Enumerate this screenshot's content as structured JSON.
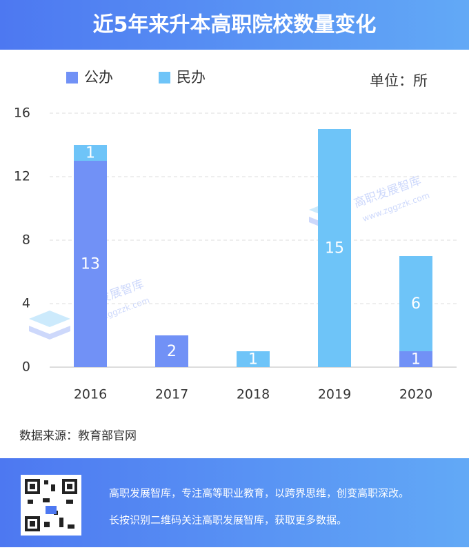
{
  "chart_data": {
    "type": "stacked-bar",
    "title": "近5年来升本高职院校数量变化",
    "unit_label": "单位：所",
    "categories": [
      "2016",
      "2017",
      "2018",
      "2019",
      "2020"
    ],
    "series": [
      {
        "name": "公办",
        "color": "#7191f6",
        "values": [
          13,
          2,
          0,
          0,
          1
        ]
      },
      {
        "name": "民办",
        "color": "#6ec4f8",
        "values": [
          1,
          0,
          1,
          15,
          6
        ]
      }
    ],
    "ylim": [
      0,
      16
    ],
    "yticks": [
      0,
      4,
      8,
      12,
      16
    ],
    "grid": true,
    "source": "数据来源：教育部官网"
  },
  "watermark": {
    "name": "高职发展智库",
    "url": "www.zggzzk.com"
  },
  "footer": {
    "line1": "高职发展智库，专注高等职业教育，以跨界思维，创变高职深改。",
    "line2": "长按识别二维码关注高职发展智库，获取更多数据。"
  }
}
